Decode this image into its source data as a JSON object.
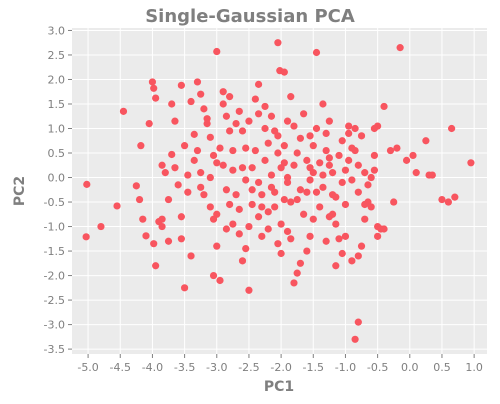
{
  "chart_data": {
    "type": "scatter",
    "title": "Single-Gaussian PCA",
    "xlabel": "PC1",
    "ylabel": "PC2",
    "xlim": [
      -5.25,
      1.2
    ],
    "ylim": [
      -3.6,
      3.05
    ],
    "xticks": [
      -5.0,
      -4.5,
      -4.0,
      -3.5,
      -3.0,
      -2.5,
      -2.0,
      -1.5,
      -1.0,
      -0.5,
      0.0,
      0.5,
      1.0
    ],
    "xtick_labels": [
      "-5.0",
      "-4.5",
      "-4.0",
      "-3.5",
      "-3.0",
      "-2.5",
      "-2.0",
      "-1.5",
      "-1.0",
      "-0.5",
      "0.0",
      "0.5",
      "1.0"
    ],
    "yticks": [
      -3.5,
      -3.0,
      -2.5,
      -2.0,
      -1.5,
      -1.0,
      -0.5,
      0.0,
      0.5,
      1.0,
      1.5,
      2.0,
      2.5,
      3.0
    ],
    "ytick_labels": [
      "-3.5",
      "-3.0",
      "-2.5",
      "-2.0",
      "-1.5",
      "-1.0",
      "-0.5",
      "0.0",
      "0.5",
      "1.0",
      "1.5",
      "2.0",
      "2.5",
      "3.0"
    ],
    "grid": true,
    "legend": "none",
    "colors": {
      "panel": "#ebebeb",
      "grid": "#ffffff",
      "point": "#f8555f",
      "text": "#7f7f7f"
    },
    "series": [
      {
        "points": [
          [
            -5.02,
            -0.14
          ],
          [
            -5.03,
            -1.21
          ],
          [
            -4.8,
            -1.0
          ],
          [
            -4.55,
            -0.58
          ],
          [
            -4.45,
            1.35
          ],
          [
            -4.25,
            -0.17
          ],
          [
            -4.2,
            -0.45
          ],
          [
            -4.1,
            -1.19
          ],
          [
            -4.15,
            -0.85
          ],
          [
            -4.18,
            0.65
          ],
          [
            -4.0,
            1.95
          ],
          [
            -3.98,
            1.82
          ],
          [
            -3.95,
            1.62
          ],
          [
            -3.98,
            -1.35
          ],
          [
            -3.95,
            -1.8
          ],
          [
            -4.05,
            1.1
          ],
          [
            -3.9,
            -0.9
          ],
          [
            -3.85,
            -0.85
          ],
          [
            -3.85,
            -1.0
          ],
          [
            -3.75,
            -1.3
          ],
          [
            -3.7,
            0.47
          ],
          [
            -3.65,
            0.2
          ],
          [
            -3.55,
            -1.25
          ],
          [
            -3.5,
            -2.25
          ],
          [
            -3.55,
            -0.8
          ],
          [
            -3.4,
            -1.6
          ],
          [
            -3.45,
            -0.3
          ],
          [
            -3.35,
            0.88
          ],
          [
            -3.3,
            1.95
          ],
          [
            -3.25,
            1.7
          ],
          [
            -3.2,
            1.4
          ],
          [
            -3.15,
            1.1
          ],
          [
            -3.1,
            0.82
          ],
          [
            -3.05,
            0.45
          ],
          [
            -3.0,
            0.3
          ],
          [
            -3.25,
            -0.2
          ],
          [
            -3.1,
            -0.6
          ],
          [
            -3.05,
            -0.85
          ],
          [
            -3.0,
            -1.4
          ],
          [
            -3.05,
            -2.0
          ],
          [
            -2.95,
            -2.1
          ],
          [
            -3.0,
            2.57
          ],
          [
            -2.9,
            1.5
          ],
          [
            -2.85,
            1.25
          ],
          [
            -2.8,
            0.95
          ],
          [
            -2.75,
            0.15
          ],
          [
            -2.7,
            -0.35
          ],
          [
            -2.65,
            -1.15
          ],
          [
            -2.55,
            -1.45
          ],
          [
            -2.5,
            -1.0
          ],
          [
            -2.5,
            -2.3
          ],
          [
            -2.45,
            -0.55
          ],
          [
            -2.4,
            0.55
          ],
          [
            -2.35,
            1.3
          ],
          [
            -2.35,
            1.9
          ],
          [
            -2.25,
            1.45
          ],
          [
            -2.2,
            0.7
          ],
          [
            -2.15,
            0.05
          ],
          [
            -2.1,
            -0.6
          ],
          [
            -2.05,
            -1.35
          ],
          [
            -2.0,
            -0.95
          ],
          [
            -1.95,
            -0.45
          ],
          [
            -1.95,
            0.3
          ],
          [
            -1.9,
            1.15
          ],
          [
            -1.85,
            1.65
          ],
          [
            -2.05,
            2.75
          ],
          [
            -1.95,
            2.15
          ],
          [
            -2.02,
            2.18
          ],
          [
            -1.8,
            1.05
          ],
          [
            -1.75,
            0.5
          ],
          [
            -1.7,
            -0.25
          ],
          [
            -1.65,
            -0.75
          ],
          [
            -1.6,
            -1.5
          ],
          [
            -1.75,
            -1.95
          ],
          [
            -1.8,
            -2.15
          ],
          [
            -1.55,
            0.2
          ],
          [
            -1.5,
            0.65
          ],
          [
            -1.45,
            1.0
          ],
          [
            -1.45,
            2.55
          ],
          [
            -1.35,
            1.5
          ],
          [
            -1.3,
            0.9
          ],
          [
            -1.25,
            0.4
          ],
          [
            -1.2,
            -0.35
          ],
          [
            -1.15,
            -0.95
          ],
          [
            -1.1,
            -1.25
          ],
          [
            -1.05,
            -1.55
          ],
          [
            -1.0,
            -0.55
          ],
          [
            -0.95,
            0.35
          ],
          [
            -0.95,
            1.05
          ],
          [
            -0.9,
            -1.7
          ],
          [
            -0.85,
            -3.3
          ],
          [
            -0.8,
            -2.95
          ],
          [
            -0.8,
            -1.6
          ],
          [
            -0.75,
            -1.4
          ],
          [
            -0.7,
            -0.85
          ],
          [
            -0.65,
            -0.5
          ],
          [
            -0.6,
            0.0
          ],
          [
            -0.55,
            0.45
          ],
          [
            -0.5,
            1.05
          ],
          [
            -0.55,
            1.0
          ],
          [
            -0.5,
            -1.0
          ],
          [
            -0.5,
            -1.2
          ],
          [
            -0.45,
            -1.05
          ],
          [
            -0.4,
            -1.05
          ],
          [
            -0.4,
            1.45
          ],
          [
            -0.3,
            0.55
          ],
          [
            -0.25,
            -0.5
          ],
          [
            -0.2,
            0.6
          ],
          [
            -0.15,
            2.65
          ],
          [
            -0.05,
            0.35
          ],
          [
            0.05,
            0.45
          ],
          [
            0.1,
            0.1
          ],
          [
            0.25,
            0.75
          ],
          [
            0.3,
            0.05
          ],
          [
            0.35,
            0.05
          ],
          [
            0.5,
            -0.45
          ],
          [
            0.6,
            -0.5
          ],
          [
            0.65,
            1.0
          ],
          [
            0.7,
            -0.4
          ],
          [
            0.95,
            0.3
          ],
          [
            -2.6,
            0.95
          ],
          [
            -2.55,
            0.6
          ],
          [
            -2.6,
            0.2
          ],
          [
            -2.45,
            0.2
          ],
          [
            -2.35,
            -0.1
          ],
          [
            -2.3,
            -0.35
          ],
          [
            -2.2,
            -0.7
          ],
          [
            -2.3,
            -1.2
          ],
          [
            -2.25,
            1.0
          ],
          [
            -2.15,
            1.25
          ],
          [
            -2.1,
            0.95
          ],
          [
            -2.05,
            0.5
          ],
          [
            -2.0,
            0.2
          ],
          [
            -1.9,
            -0.1
          ],
          [
            -1.85,
            -0.5
          ],
          [
            -1.7,
            0.8
          ],
          [
            -1.65,
            1.3
          ],
          [
            -1.6,
            0.35
          ],
          [
            -1.55,
            -0.05
          ],
          [
            -1.4,
            -0.6
          ],
          [
            -1.35,
            -0.2
          ],
          [
            -1.3,
            0.55
          ],
          [
            -1.25,
            1.15
          ],
          [
            -1.2,
            0.1
          ],
          [
            -1.15,
            -0.4
          ],
          [
            -1.05,
            0.75
          ],
          [
            -1.0,
            0.15
          ],
          [
            -0.9,
            -0.05
          ],
          [
            -0.85,
            0.55
          ],
          [
            -0.8,
            -0.3
          ],
          [
            -0.75,
            0.85
          ],
          [
            -0.7,
            0.1
          ],
          [
            -0.65,
            -0.15
          ],
          [
            -3.3,
            0.55
          ],
          [
            -3.25,
            0.1
          ],
          [
            -3.2,
            -0.35
          ],
          [
            -3.15,
            1.2
          ],
          [
            -3.1,
            0.0
          ],
          [
            -2.95,
            0.6
          ],
          [
            -2.9,
            0.25
          ],
          [
            -2.85,
            -0.25
          ],
          [
            -2.8,
            -0.55
          ],
          [
            -2.75,
            0.55
          ],
          [
            -2.7,
            1.1
          ],
          [
            -2.65,
            1.35
          ],
          [
            -2.9,
            1.75
          ],
          [
            -2.8,
            1.65
          ],
          [
            -3.5,
            0.65
          ],
          [
            -3.45,
            0.05
          ],
          [
            -3.6,
            -0.15
          ],
          [
            -3.7,
            1.5
          ],
          [
            -3.65,
            1.15
          ],
          [
            -3.8,
            0.1
          ],
          [
            -3.85,
            0.25
          ],
          [
            -3.75,
            -0.45
          ],
          [
            -3.55,
            1.88
          ],
          [
            -3.4,
            1.55
          ],
          [
            -3.35,
            0.35
          ],
          [
            -2.4,
            1.6
          ],
          [
            -2.5,
            1.15
          ],
          [
            -2.45,
            -0.25
          ],
          [
            -2.35,
            -0.8
          ],
          [
            -2.2,
            -1.05
          ],
          [
            -2.15,
            -0.2
          ],
          [
            -2.05,
            0.85
          ],
          [
            -1.95,
            0.65
          ],
          [
            -1.9,
            0.0
          ],
          [
            -1.8,
            0.25
          ],
          [
            -1.75,
            -0.45
          ],
          [
            -1.6,
            -0.3
          ],
          [
            -1.55,
            0.85
          ],
          [
            -1.5,
            0.1
          ],
          [
            -1.45,
            -0.3
          ],
          [
            -1.4,
            0.3
          ],
          [
            -1.35,
            0.05
          ],
          [
            -1.25,
            0.25
          ],
          [
            -1.2,
            -0.75
          ],
          [
            -1.1,
            0.45
          ],
          [
            -1.05,
            -0.1
          ],
          [
            -0.95,
            0.9
          ],
          [
            -0.9,
            0.6
          ],
          [
            -0.85,
            1.0
          ],
          [
            -0.8,
            0.25
          ],
          [
            -0.7,
            -0.55
          ],
          [
            -0.6,
            -0.6
          ],
          [
            -0.55,
            0.15
          ],
          [
            -3.0,
            -0.75
          ],
          [
            -2.85,
            -1.05
          ],
          [
            -2.75,
            -0.95
          ],
          [
            -2.65,
            -0.65
          ],
          [
            -2.6,
            -1.7
          ],
          [
            -2.55,
            -0.05
          ],
          [
            -2.3,
            -0.6
          ],
          [
            -2.25,
            0.35
          ],
          [
            -2.1,
            -0.3
          ],
          [
            -2.0,
            -1.55
          ],
          [
            -1.9,
            -1.1
          ],
          [
            -1.85,
            -1.25
          ],
          [
            -1.7,
            -1.75
          ],
          [
            -1.55,
            -1.2
          ],
          [
            -1.5,
            -0.85
          ],
          [
            -1.3,
            -1.3
          ],
          [
            -1.25,
            -0.8
          ],
          [
            -1.15,
            -1.8
          ],
          [
            -1.0,
            -1.2
          ]
        ]
      }
    ]
  }
}
